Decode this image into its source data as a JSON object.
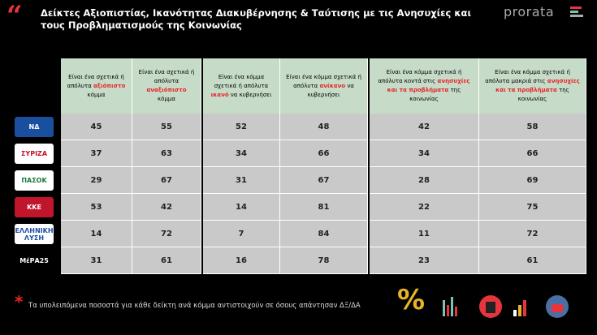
{
  "header": {
    "title": "Δείκτες Αξιοπιστίας, Ικανότητας Διακυβέρνησης & Ταύτισης με τις Ανησυχίες και τους Προβληματισμούς της Κοινωνίας",
    "brand": "prorata"
  },
  "table": {
    "columns": [
      {
        "before": "Είναι ένα σχετικά ή απόλυτα ",
        "highlight": "αξιόπιστο",
        "after": " κόμμα"
      },
      {
        "before": "Είναι ένα σχετικά ή απόλυτα ",
        "highlight": "αναξιόπιστο",
        "after": " κόμμα"
      },
      {
        "before": "Είναι ένα κόμμα σχετικά ή απόλυτα ",
        "highlight": "ικανό",
        "after": " να κυβερνήσει"
      },
      {
        "before": "Είναι ένα κόμμα σχετικά ή απόλυτα ",
        "highlight": "ανίκανο",
        "after": " να κυβερνήσει"
      },
      {
        "before": "Είναι ένα κόμμα σχετικά ή απόλυτα κοντά στις ",
        "highlight": "ανησυχίες και τα προβλήματα",
        "after": " της κοινωνίας"
      },
      {
        "before": "Είναι ένα κόμμα σχετικά ή απόλυτα μακριά στις ",
        "highlight": "ανησυχίες και τα προβλήματα",
        "after": " της κοινωνίας"
      }
    ],
    "rows": [
      {
        "party": "ΝΔ",
        "values": [
          45,
          55,
          52,
          48,
          42,
          58
        ]
      },
      {
        "party": "ΣΥΡΙΖΑ",
        "values": [
          37,
          63,
          34,
          66,
          34,
          66
        ]
      },
      {
        "party": "ΠΑΣΟΚ",
        "values": [
          29,
          67,
          31,
          67,
          28,
          69
        ]
      },
      {
        "party": "ΚΚΕ",
        "values": [
          53,
          42,
          14,
          81,
          22,
          75
        ]
      },
      {
        "party": "ΕΛΛΗΝΙΚΗ ΛΥΣΗ",
        "values": [
          14,
          72,
          7,
          84,
          11,
          72
        ]
      },
      {
        "party": "ΜέΡΑ25",
        "values": [
          31,
          61,
          16,
          78,
          23,
          61
        ]
      }
    ]
  },
  "footnote": {
    "marker": "*",
    "text": "Τα υπολειπόμενα ποσοστά για κάθε δείκτη ανά κόμμα αντιστοιχούν σε όσους απάντησαν ΔΞ/ΔΑ"
  }
}
